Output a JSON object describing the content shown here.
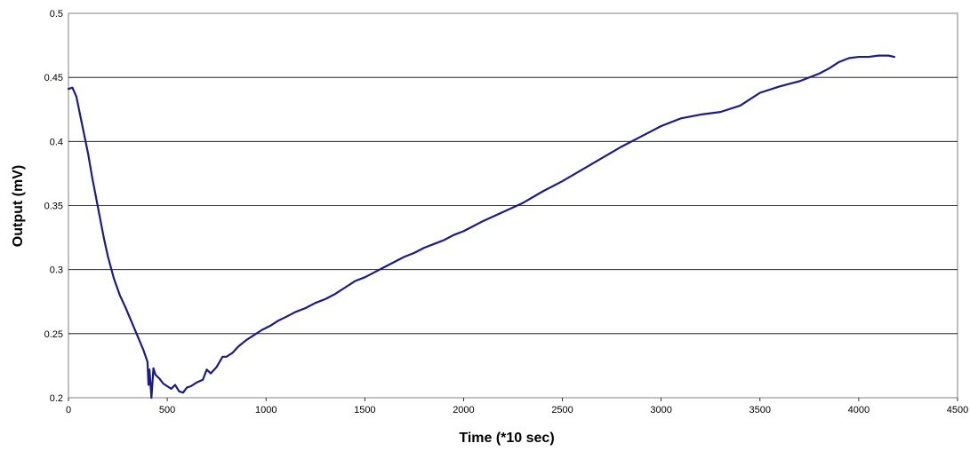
{
  "chart_data": {
    "type": "line",
    "title": "",
    "xlabel": "Time (*10 sec)",
    "ylabel": "Output (mV)",
    "xlim": [
      0,
      4500
    ],
    "ylim": [
      0.2,
      0.5
    ],
    "x_ticks": [
      0,
      500,
      1000,
      1500,
      2000,
      2500,
      3000,
      3500,
      4000,
      4500
    ],
    "y_ticks": [
      0.2,
      0.25,
      0.3,
      0.35,
      0.4,
      0.45,
      0.5
    ],
    "x_tick_labels": [
      "0",
      "500",
      "1000",
      "1500",
      "2000",
      "2500",
      "3000",
      "3500",
      "4000",
      "4500"
    ],
    "y_tick_labels": [
      "0.2",
      "0.25",
      "0.3",
      "0.35",
      "0.4",
      "0.45",
      "0.5"
    ],
    "grid": {
      "horizontal": true,
      "vertical": false
    },
    "legend": "none",
    "colors": {
      "line": "#1a1a8c",
      "grid": "#000000",
      "plot_border": "#808080",
      "background": "#ffffff"
    },
    "series": [
      {
        "x": [
          0,
          20,
          40,
          60,
          80,
          100,
          120,
          150,
          180,
          200,
          230,
          260,
          290,
          320,
          350,
          380,
          400,
          405,
          410,
          420,
          430,
          440,
          460,
          480,
          500,
          520,
          540,
          560,
          580,
          600,
          620,
          650,
          680,
          700,
          720,
          750,
          780,
          800,
          830,
          860,
          900,
          940,
          980,
          1020,
          1060,
          1100,
          1150,
          1200,
          1250,
          1300,
          1350,
          1400,
          1450,
          1500,
          1550,
          1600,
          1650,
          1700,
          1750,
          1800,
          1850,
          1900,
          1950,
          2000,
          2100,
          2200,
          2300,
          2400,
          2500,
          2600,
          2700,
          2800,
          2900,
          3000,
          3100,
          3200,
          3300,
          3400,
          3500,
          3600,
          3700,
          3800,
          3850,
          3900,
          3950,
          4000,
          4050,
          4100,
          4150,
          4180
        ],
        "y": [
          0.441,
          0.442,
          0.435,
          0.42,
          0.405,
          0.39,
          0.372,
          0.348,
          0.324,
          0.31,
          0.293,
          0.28,
          0.27,
          0.259,
          0.248,
          0.237,
          0.228,
          0.21,
          0.222,
          0.2,
          0.223,
          0.218,
          0.215,
          0.211,
          0.209,
          0.207,
          0.21,
          0.205,
          0.204,
          0.208,
          0.209,
          0.212,
          0.214,
          0.222,
          0.219,
          0.224,
          0.232,
          0.232,
          0.235,
          0.24,
          0.245,
          0.249,
          0.253,
          0.256,
          0.26,
          0.263,
          0.267,
          0.27,
          0.274,
          0.277,
          0.281,
          0.286,
          0.291,
          0.294,
          0.298,
          0.302,
          0.306,
          0.31,
          0.313,
          0.317,
          0.32,
          0.323,
          0.327,
          0.33,
          0.338,
          0.345,
          0.352,
          0.361,
          0.369,
          0.378,
          0.387,
          0.396,
          0.404,
          0.412,
          0.418,
          0.421,
          0.423,
          0.428,
          0.438,
          0.443,
          0.447,
          0.453,
          0.457,
          0.462,
          0.465,
          0.466,
          0.466,
          0.467,
          0.467,
          0.466
        ]
      }
    ]
  }
}
